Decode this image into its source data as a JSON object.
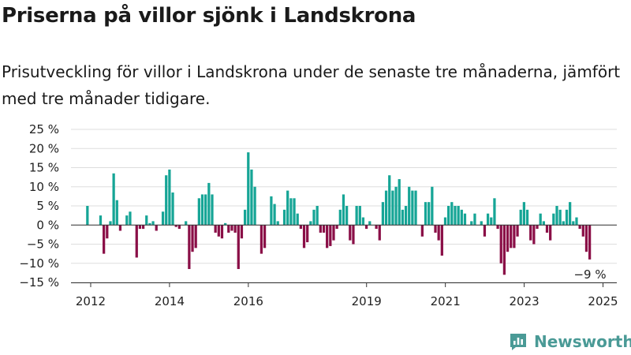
{
  "header": {
    "title": "Priserna på villor sjönk i Landskrona",
    "subtitle": "Prisutveckling för villor i Landskrona under de senaste tre månaderna, jämfört med tre månader tidigare."
  },
  "brand": {
    "name": "Newsworthy",
    "color": "#4a9a96",
    "icon": "bar-chart-logo-icon"
  },
  "colors": {
    "positive": "#16a596",
    "negative": "#8a0f47",
    "grid": "#dddddd"
  },
  "chart_data": {
    "type": "bar",
    "x_start_year": 2011.917,
    "x_step_years": 0.0833,
    "y_ticks": [
      -15,
      -10,
      -5,
      0,
      5,
      10,
      15,
      20,
      25
    ],
    "y_tick_labels": [
      "−15 %",
      "−10 %",
      "−5 %",
      "0 %",
      "5 %",
      "10 %",
      "15 %",
      "20 %",
      "25 %"
    ],
    "ylim": [
      -15,
      25
    ],
    "x_ticks": [
      2012,
      2014,
      2016,
      2019,
      2021,
      2023,
      2025
    ],
    "x_tick_labels": [
      "2012",
      "2014",
      "2016",
      "2019",
      "2021",
      "2023",
      "2025"
    ],
    "xlim": [
      2011.5,
      2025.35
    ],
    "grid": true,
    "annotation": {
      "label": "−9 %",
      "value": -9
    },
    "values": [
      5,
      0,
      0,
      0,
      2.5,
      -7.5,
      -3.5,
      1,
      13.5,
      6.5,
      -1.5,
      0,
      2.5,
      3.5,
      0,
      -8.5,
      -1,
      -1,
      2.5,
      0.5,
      1,
      -1.5,
      0,
      3.5,
      13,
      14.5,
      8.5,
      -0.5,
      -1,
      0,
      1,
      -11.5,
      -7,
      -6,
      7,
      8,
      8,
      11,
      8,
      -2,
      -3,
      -3.5,
      0.5,
      -2,
      -1.5,
      -2,
      -11.5,
      -3.5,
      4,
      19,
      14.5,
      10,
      0,
      -7.5,
      -6,
      0,
      7.5,
      5.5,
      1,
      0,
      4,
      9,
      7,
      7,
      3,
      -1,
      -6,
      -4.5,
      1,
      4,
      5,
      -2,
      -2,
      -6,
      -5.5,
      -4,
      -1,
      4,
      8,
      5,
      -4,
      -5,
      5,
      5,
      2,
      -1,
      1,
      0,
      -1,
      -4,
      6,
      9,
      13,
      9,
      10,
      12,
      4,
      5,
      10,
      9,
      9,
      0,
      -3,
      6,
      6,
      10,
      -2,
      -4,
      -8,
      2,
      5,
      6,
      5,
      5,
      4,
      3,
      0,
      1,
      3,
      0,
      1,
      -3,
      3,
      2,
      7,
      -1,
      -10,
      -13,
      -7,
      -6,
      -6,
      -3,
      4,
      6,
      4,
      -4,
      -5,
      -1,
      3,
      1,
      -2,
      -4,
      3,
      5,
      4,
      1,
      4,
      6,
      1,
      2,
      -1,
      -3,
      -7,
      -9
    ]
  }
}
